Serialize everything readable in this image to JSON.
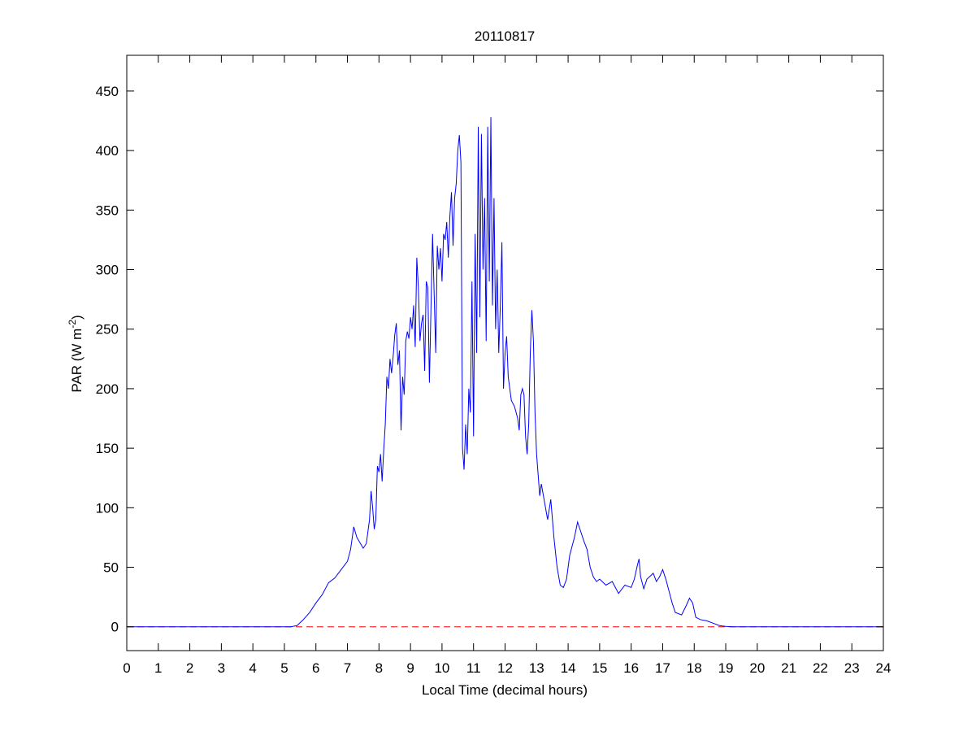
{
  "chart_data": {
    "type": "line",
    "title": "20110817",
    "xlabel": "Local Time (decimal hours)",
    "ylabel": {
      "text": "PAR (W m",
      "sup": "-2",
      "end": ")"
    },
    "xlim": [
      0,
      24
    ],
    "xticks": [
      0,
      1,
      2,
      3,
      4,
      5,
      6,
      7,
      8,
      9,
      10,
      11,
      12,
      13,
      14,
      15,
      16,
      17,
      18,
      19,
      20,
      21,
      22,
      23,
      24
    ],
    "ylim": [
      -20,
      480
    ],
    "yticks": [
      0,
      50,
      100,
      150,
      200,
      250,
      300,
      350,
      400,
      450
    ],
    "reference_line": {
      "y": 0,
      "color": "#ff0000",
      "style": "dashed"
    },
    "x": [
      0,
      5.2,
      5.4,
      5.6,
      5.8,
      6.0,
      6.2,
      6.4,
      6.6,
      6.8,
      7.0,
      7.1,
      7.2,
      7.3,
      7.5,
      7.6,
      7.7,
      7.75,
      7.8,
      7.85,
      7.9,
      7.95,
      8.0,
      8.05,
      8.1,
      8.15,
      8.2,
      8.25,
      8.3,
      8.35,
      8.4,
      8.45,
      8.5,
      8.55,
      8.6,
      8.65,
      8.7,
      8.75,
      8.8,
      8.85,
      8.9,
      8.95,
      9.0,
      9.05,
      9.1,
      9.15,
      9.2,
      9.25,
      9.3,
      9.35,
      9.4,
      9.45,
      9.5,
      9.55,
      9.6,
      9.7,
      9.75,
      9.8,
      9.85,
      9.9,
      9.95,
      10.0,
      10.05,
      10.1,
      10.15,
      10.2,
      10.25,
      10.3,
      10.35,
      10.4,
      10.45,
      10.5,
      10.55,
      10.6,
      10.65,
      10.7,
      10.75,
      10.8,
      10.85,
      10.9,
      10.95,
      11.0,
      11.05,
      11.1,
      11.15,
      11.2,
      11.25,
      11.3,
      11.35,
      11.4,
      11.45,
      11.5,
      11.55,
      11.6,
      11.65,
      11.7,
      11.75,
      11.8,
      11.85,
      11.9,
      11.95,
      12.0,
      12.05,
      12.1,
      12.2,
      12.3,
      12.4,
      12.45,
      12.5,
      12.55,
      12.6,
      12.65,
      12.7,
      12.75,
      12.8,
      12.85,
      12.9,
      12.95,
      13.0,
      13.1,
      13.15,
      13.25,
      13.35,
      13.45,
      13.55,
      13.65,
      13.75,
      13.85,
      13.95,
      14.05,
      14.2,
      14.3,
      14.4,
      14.5,
      14.6,
      14.7,
      14.8,
      14.9,
      15.0,
      15.2,
      15.4,
      15.6,
      15.8,
      16.0,
      16.1,
      16.2,
      16.25,
      16.3,
      16.4,
      16.5,
      16.7,
      16.8,
      16.9,
      17.0,
      17.1,
      17.2,
      17.3,
      17.4,
      17.6,
      17.75,
      17.85,
      17.95,
      18.05,
      18.2,
      18.4,
      18.6,
      18.8,
      19.0,
      19.2,
      24
    ],
    "series": [
      {
        "name": "PAR",
        "color": "#0000ff",
        "values": [
          0,
          0,
          1,
          6,
          12,
          20,
          27,
          37,
          41,
          48,
          55,
          65,
          84,
          75,
          66,
          70,
          90,
          114,
          100,
          82,
          90,
          135,
          130,
          145,
          122,
          148,
          170,
          210,
          200,
          225,
          213,
          227,
          245,
          255,
          220,
          232,
          165,
          210,
          195,
          240,
          248,
          242,
          260,
          250,
          270,
          235,
          310,
          285,
          240,
          255,
          262,
          215,
          290,
          285,
          205,
          330,
          280,
          230,
          320,
          300,
          318,
          290,
          330,
          325,
          340,
          310,
          345,
          365,
          320,
          360,
          372,
          400,
          413,
          390,
          150,
          132,
          170,
          145,
          200,
          180,
          290,
          160,
          330,
          230,
          420,
          260,
          414,
          300,
          360,
          240,
          420,
          290,
          428,
          270,
          360,
          250,
          300,
          230,
          270,
          323,
          200,
          230,
          244,
          210,
          190,
          185,
          175,
          165,
          195,
          200,
          195,
          160,
          145,
          170,
          230,
          266,
          240,
          180,
          145,
          110,
          120,
          105,
          90,
          107,
          75,
          50,
          35,
          33,
          40,
          60,
          75,
          88,
          80,
          72,
          65,
          50,
          42,
          38,
          40,
          35,
          38,
          28,
          35,
          33,
          40,
          52,
          57,
          42,
          32,
          40,
          45,
          38,
          42,
          48,
          40,
          30,
          20,
          12,
          10,
          18,
          24,
          20,
          8,
          6,
          5,
          3,
          1,
          0.3,
          0,
          0
        ]
      }
    ]
  }
}
